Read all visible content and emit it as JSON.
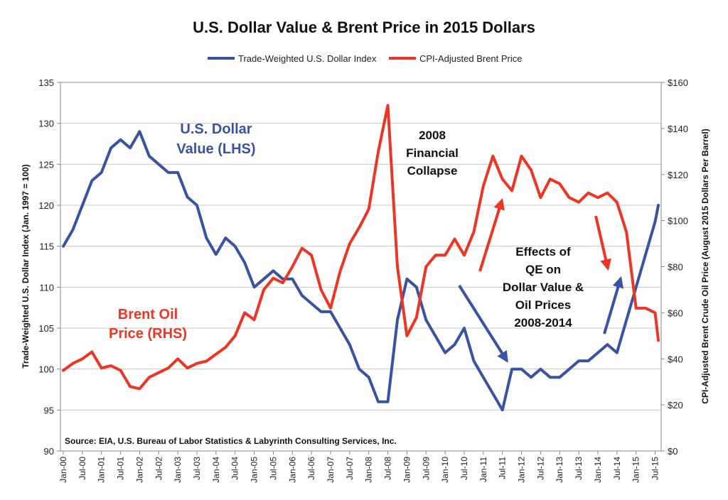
{
  "chart_data": {
    "type": "line",
    "title": "U.S. Dollar Value & Brent Price in 2015 Dollars",
    "ylabel_left": "Trade-Weighted U.S. Dollar Index (Jan. 1997 = 100)",
    "ylabel_right": "CPI-Adjusted Brent Crude Oil Price (August 2015 Dollars Per Barrel)",
    "ylim_left": [
      90,
      135
    ],
    "yticks_left": [
      "90",
      "95",
      "100",
      "105",
      "110",
      "115",
      "120",
      "125",
      "130",
      "135"
    ],
    "ylim_right": [
      0,
      160
    ],
    "yticks_right": [
      "$0",
      "$20",
      "$40",
      "$60",
      "$80",
      "$100",
      "$120",
      "$140",
      "$160"
    ],
    "xticks": [
      "Jan-00",
      "Jul-00",
      "Jan-01",
      "Jul-01",
      "Jan-02",
      "Jul-02",
      "Jan-03",
      "Jul-03",
      "Jan-04",
      "Jul-04",
      "Jan-05",
      "Jul-05",
      "Jan-06",
      "Jul-06",
      "Jan-07",
      "Jul-07",
      "Jan-08",
      "Jul-08",
      "Jan-09",
      "Jul-09",
      "Jan-10",
      "Jul-10",
      "Jan-11",
      "Jul-11",
      "Jan-12",
      "Jul-12",
      "Jan-13",
      "Jul-13",
      "Jan-14",
      "Jul-14",
      "Jan-15",
      "Jul-15"
    ],
    "grid": "horizontal",
    "legend_position": "top-center",
    "series": [
      {
        "name": "Trade-Weighted U.S. Dollar Index",
        "axis": "left",
        "color": "#3953a4",
        "x": [
          "Jan-00",
          "Apr-00",
          "Jul-00",
          "Oct-00",
          "Jan-01",
          "Apr-01",
          "Jul-01",
          "Oct-01",
          "Jan-02",
          "Apr-02",
          "Jul-02",
          "Oct-02",
          "Jan-03",
          "Apr-03",
          "Jul-03",
          "Oct-03",
          "Jan-04",
          "Apr-04",
          "Jul-04",
          "Oct-04",
          "Jan-05",
          "Apr-05",
          "Jul-05",
          "Oct-05",
          "Jan-06",
          "Apr-06",
          "Jul-06",
          "Oct-06",
          "Jan-07",
          "Apr-07",
          "Jul-07",
          "Oct-07",
          "Jan-08",
          "Apr-08",
          "Jul-08",
          "Oct-08",
          "Jan-09",
          "Apr-09",
          "Jul-09",
          "Oct-09",
          "Jan-10",
          "Apr-10",
          "Jul-10",
          "Oct-10",
          "Jan-11",
          "Apr-11",
          "Jul-11",
          "Oct-11",
          "Jan-12",
          "Apr-12",
          "Jul-12",
          "Oct-12",
          "Jan-13",
          "Apr-13",
          "Jul-13",
          "Oct-13",
          "Jan-14",
          "Apr-14",
          "Jul-14",
          "Oct-14",
          "Jan-15",
          "Apr-15",
          "Jul-15",
          "Aug-15"
        ],
        "values": [
          115,
          117,
          120,
          123,
          124,
          127,
          128,
          127,
          129,
          126,
          125,
          124,
          124,
          121,
          120,
          116,
          114,
          116,
          115,
          113,
          110,
          111,
          112,
          111,
          111,
          109,
          108,
          107,
          107,
          105,
          103,
          100,
          99,
          96,
          96,
          106,
          111,
          110,
          106,
          104,
          102,
          103,
          105,
          101,
          99,
          97,
          95,
          100,
          100,
          99,
          100,
          99,
          99,
          100,
          101,
          101,
          102,
          103,
          102,
          106,
          110,
          114,
          118,
          120
        ]
      },
      {
        "name": "CPI-Adjusted Brent Price",
        "axis": "right",
        "color": "#ee3524",
        "x": [
          "Jan-00",
          "Apr-00",
          "Jul-00",
          "Oct-00",
          "Jan-01",
          "Apr-01",
          "Jul-01",
          "Oct-01",
          "Jan-02",
          "Apr-02",
          "Jul-02",
          "Oct-02",
          "Jan-03",
          "Apr-03",
          "Jul-03",
          "Oct-03",
          "Jan-04",
          "Apr-04",
          "Jul-04",
          "Oct-04",
          "Jan-05",
          "Apr-05",
          "Jul-05",
          "Oct-05",
          "Jan-06",
          "Apr-06",
          "Jul-06",
          "Oct-06",
          "Jan-07",
          "Apr-07",
          "Jul-07",
          "Oct-07",
          "Jan-08",
          "Apr-08",
          "Jul-08",
          "Oct-08",
          "Jan-09",
          "Apr-09",
          "Jul-09",
          "Oct-09",
          "Jan-10",
          "Apr-10",
          "Jul-10",
          "Oct-10",
          "Jan-11",
          "Apr-11",
          "Jul-11",
          "Oct-11",
          "Jan-12",
          "Apr-12",
          "Jul-12",
          "Oct-12",
          "Jan-13",
          "Apr-13",
          "Jul-13",
          "Oct-13",
          "Jan-14",
          "Apr-14",
          "Jul-14",
          "Oct-14",
          "Jan-15",
          "Apr-15",
          "Jul-15",
          "Aug-15"
        ],
        "values": [
          35,
          38,
          40,
          43,
          36,
          37,
          35,
          28,
          27,
          32,
          34,
          36,
          40,
          36,
          38,
          39,
          42,
          45,
          50,
          60,
          57,
          70,
          75,
          73,
          80,
          88,
          85,
          70,
          62,
          78,
          90,
          97,
          105,
          130,
          150,
          80,
          50,
          58,
          80,
          85,
          85,
          92,
          85,
          95,
          115,
          128,
          118,
          113,
          128,
          122,
          110,
          118,
          116,
          110,
          108,
          112,
          110,
          112,
          108,
          95,
          62,
          62,
          60,
          48
        ]
      }
    ],
    "annotations": {
      "dollar_label": [
        "U.S. Dollar",
        "Value (LHS)"
      ],
      "oil_label": [
        "Brent Oil",
        "Price (RHS)"
      ],
      "collapse_label": [
        "2008",
        "Financial",
        "Collapse"
      ],
      "qe_label": [
        "Effects of",
        "QE on",
        "Dollar Value &",
        "Oil Prices",
        "2008-2014"
      ],
      "source": "Source:  EIA, U.S. Bureau of Labor Statistics & Labyrinth Consulting Services, Inc."
    },
    "colors": {
      "annotation_blue": "#3953a4",
      "annotation_red": "#ee3524"
    }
  }
}
